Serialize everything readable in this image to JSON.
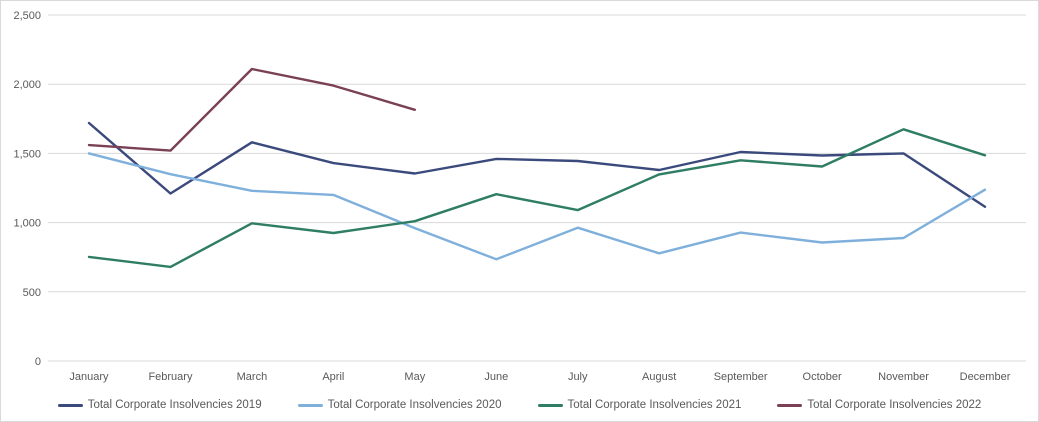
{
  "chart_data": {
    "type": "line",
    "title": "",
    "xlabel": "",
    "ylabel": "",
    "categories": [
      "January",
      "February",
      "March",
      "April",
      "May",
      "June",
      "July",
      "August",
      "September",
      "October",
      "November",
      "December"
    ],
    "series": [
      {
        "name": "Total Corporate Insolvencies 2019",
        "color": "#3b4a7c",
        "values": [
          1720,
          1210,
          1580,
          1430,
          1355,
          1460,
          1445,
          1380,
          1510,
          1485,
          1500,
          1115
        ]
      },
      {
        "name": "Total Corporate Insolvencies 2020",
        "color": "#7fb0dc",
        "values": [
          1500,
          1350,
          1230,
          1200,
          960,
          735,
          963,
          778,
          928,
          856,
          889,
          1238
        ]
      },
      {
        "name": "Total Corporate Insolvencies 2021",
        "color": "#2e7d64",
        "values": [
          752,
          680,
          995,
          925,
          1010,
          1205,
          1090,
          1348,
          1450,
          1405,
          1674,
          1486
        ]
      },
      {
        "name": "Total Corporate Insolvencies 2022",
        "color": "#7a4156",
        "values": [
          1560,
          1520,
          2110,
          1990,
          1815,
          null,
          null,
          null,
          null,
          null,
          null,
          null
        ]
      }
    ],
    "y_tick_values": [
      0,
      500,
      1000,
      1500,
      2000,
      2500
    ],
    "y_tick_labels": [
      "0",
      "500",
      "1,000",
      "1,500",
      "2,000",
      "2,500"
    ],
    "ylim": [
      0,
      2500
    ],
    "grid": true,
    "gridline_color": "#d9d9d9",
    "text_color": "#595959",
    "legend_position": "bottom"
  }
}
